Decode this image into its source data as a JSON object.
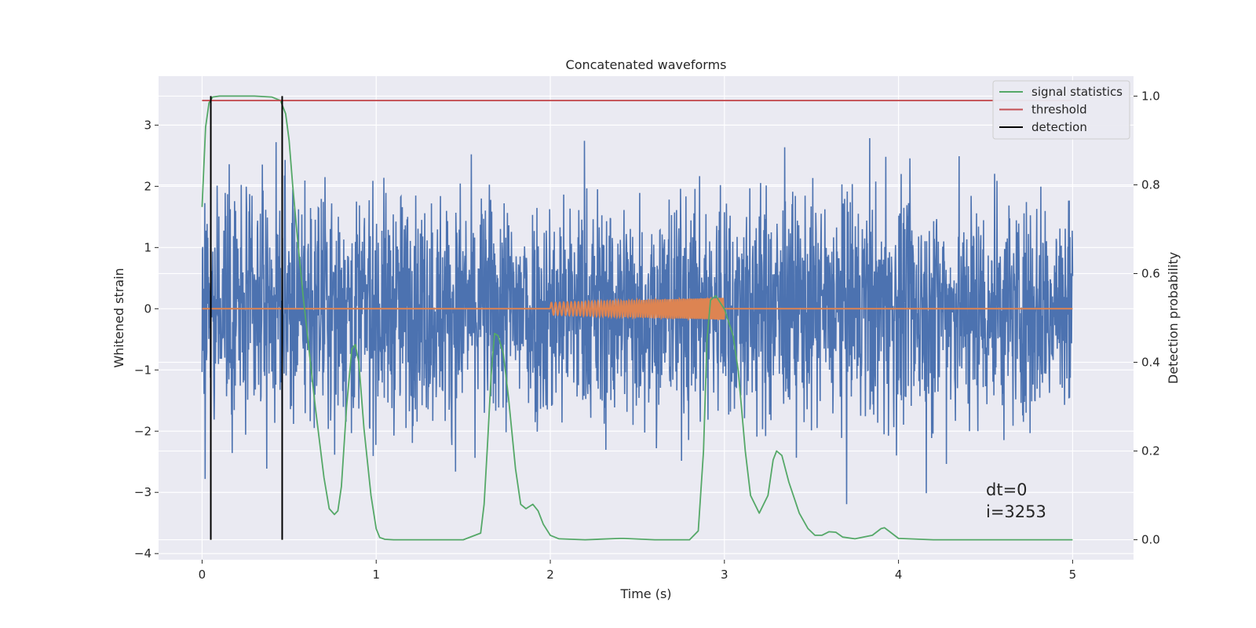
{
  "chart_data": {
    "type": "line",
    "title": "Concatenated waveforms",
    "xlabel": "Time (s)",
    "ylabel_left": "Whitened strain",
    "ylabel_right": "Detection probability",
    "xlim": [
      -0.25,
      5.35
    ],
    "ylim_left": [
      -4.1,
      3.8
    ],
    "ylim_right": [
      -0.045,
      1.045
    ],
    "x_ticks": [
      0,
      1,
      2,
      3,
      4,
      5
    ],
    "x_tick_labels": [
      "0",
      "1",
      "2",
      "3",
      "4",
      "5"
    ],
    "y_left_ticks": [
      -4,
      -3,
      -2,
      -1,
      0,
      1,
      2,
      3
    ],
    "y_left_tick_labels": [
      "−4",
      "−3",
      "−2",
      "−1",
      "0",
      "1",
      "2",
      "3"
    ],
    "y_right_ticks": [
      0.0,
      0.2,
      0.4,
      0.6,
      0.8,
      1.0
    ],
    "y_right_tick_labels": [
      "0.0",
      "0.2",
      "0.4",
      "0.6",
      "0.8",
      "1.0"
    ],
    "grid": true,
    "legend_position": "top-right",
    "noise": {
      "axis": "left",
      "x_range": [
        0,
        5
      ],
      "y_range_approx": [
        -3.75,
        3.4
      ],
      "color": "#4c72b0"
    },
    "injected_signal": {
      "axis": "left",
      "color": "#dd8452",
      "baseline": 0,
      "chirp_x_range": [
        2.0,
        3.0
      ],
      "chirp_amplitude_start": 0.1,
      "chirp_amplitude_end": 0.18
    },
    "series": [
      {
        "name": "signal statistics",
        "axis": "right",
        "color": "#55a868",
        "x": [
          0.0,
          0.02,
          0.04,
          0.06,
          0.1,
          0.2,
          0.3,
          0.4,
          0.45,
          0.48,
          0.5,
          0.52,
          0.55,
          0.58,
          0.6,
          0.65,
          0.7,
          0.73,
          0.76,
          0.78,
          0.8,
          0.83,
          0.86,
          0.88,
          0.9,
          0.93,
          0.97,
          1.0,
          1.02,
          1.05,
          1.1,
          1.3,
          1.5,
          1.6,
          1.62,
          1.64,
          1.66,
          1.68,
          1.7,
          1.73,
          1.76,
          1.8,
          1.83,
          1.86,
          1.9,
          1.93,
          1.96,
          2.0,
          2.05,
          2.2,
          2.4,
          2.42,
          2.6,
          2.8,
          2.85,
          2.88,
          2.9,
          2.92,
          2.95,
          3.0,
          3.05,
          3.08,
          3.12,
          3.15,
          3.2,
          3.25,
          3.28,
          3.3,
          3.33,
          3.37,
          3.43,
          3.48,
          3.52,
          3.56,
          3.6,
          3.64,
          3.68,
          3.75,
          3.85,
          3.9,
          3.92,
          3.95,
          4.0,
          4.2,
          4.5,
          4.8,
          5.0
        ],
        "y": [
          0.75,
          0.93,
          0.985,
          0.998,
          1.0,
          1.0,
          1.0,
          0.998,
          0.99,
          0.96,
          0.9,
          0.8,
          0.67,
          0.55,
          0.48,
          0.3,
          0.14,
          0.07,
          0.057,
          0.065,
          0.12,
          0.3,
          0.43,
          0.44,
          0.4,
          0.25,
          0.1,
          0.025,
          0.005,
          0.001,
          0.0,
          0.0,
          0.0,
          0.015,
          0.08,
          0.22,
          0.37,
          0.465,
          0.46,
          0.42,
          0.32,
          0.16,
          0.08,
          0.07,
          0.08,
          0.065,
          0.035,
          0.01,
          0.002,
          0.0,
          0.003,
          0.003,
          0.0,
          0.0,
          0.02,
          0.2,
          0.45,
          0.54,
          0.55,
          0.52,
          0.46,
          0.38,
          0.2,
          0.1,
          0.06,
          0.1,
          0.18,
          0.2,
          0.19,
          0.13,
          0.06,
          0.025,
          0.01,
          0.01,
          0.018,
          0.017,
          0.006,
          0.002,
          0.01,
          0.025,
          0.027,
          0.018,
          0.003,
          0.0,
          0.0,
          0.0,
          0.0
        ]
      },
      {
        "name": "threshold",
        "axis": "right",
        "color": "#c44e52",
        "x": [
          0,
          5
        ],
        "y": [
          0.99,
          0.99
        ]
      },
      {
        "name": "detection",
        "axis": "right",
        "color": "#000000",
        "x_positions": [
          0.05,
          0.46
        ],
        "y_range": [
          0.0,
          1.0
        ]
      }
    ],
    "annotations": [
      "dt=0",
      "i=3253"
    ]
  }
}
